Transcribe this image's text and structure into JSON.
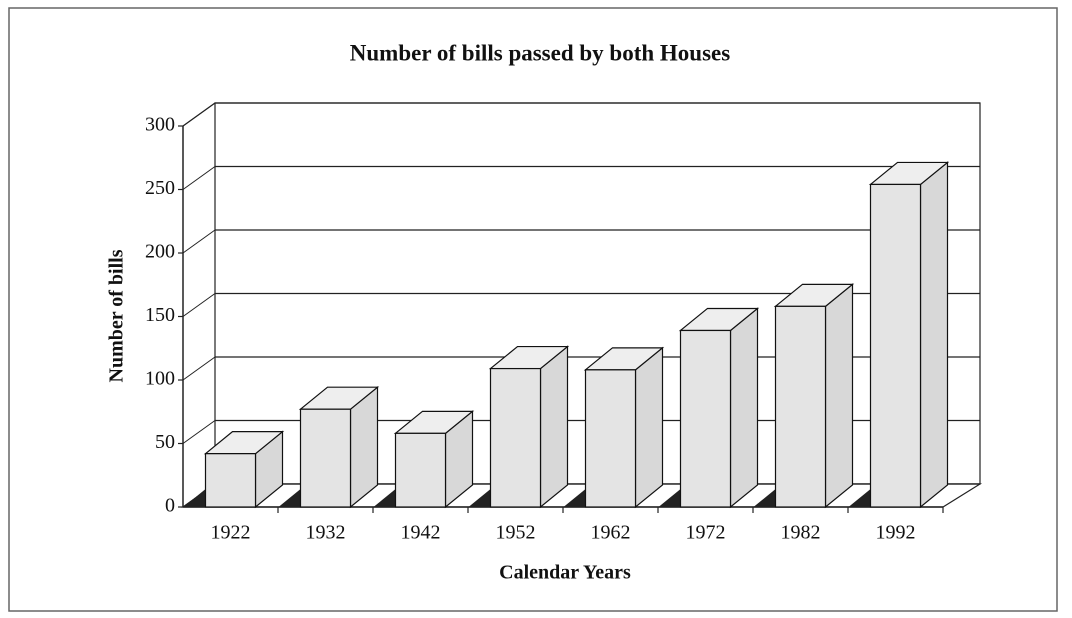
{
  "chart_data": {
    "type": "bar",
    "title": "Number of bills passed by both Houses",
    "x_label": "Calendar Years",
    "y_label": "Number of bills",
    "categories": [
      "1922",
      "1932",
      "1942",
      "1952",
      "1962",
      "1972",
      "1982",
      "1992"
    ],
    "values": [
      42,
      77,
      58,
      109,
      108,
      139,
      158,
      254
    ],
    "color": "#e4e4e4",
    "ylim": [
      0,
      300
    ],
    "yticks": [
      0,
      50,
      100,
      150,
      200,
      250,
      300
    ],
    "grid": true
  }
}
